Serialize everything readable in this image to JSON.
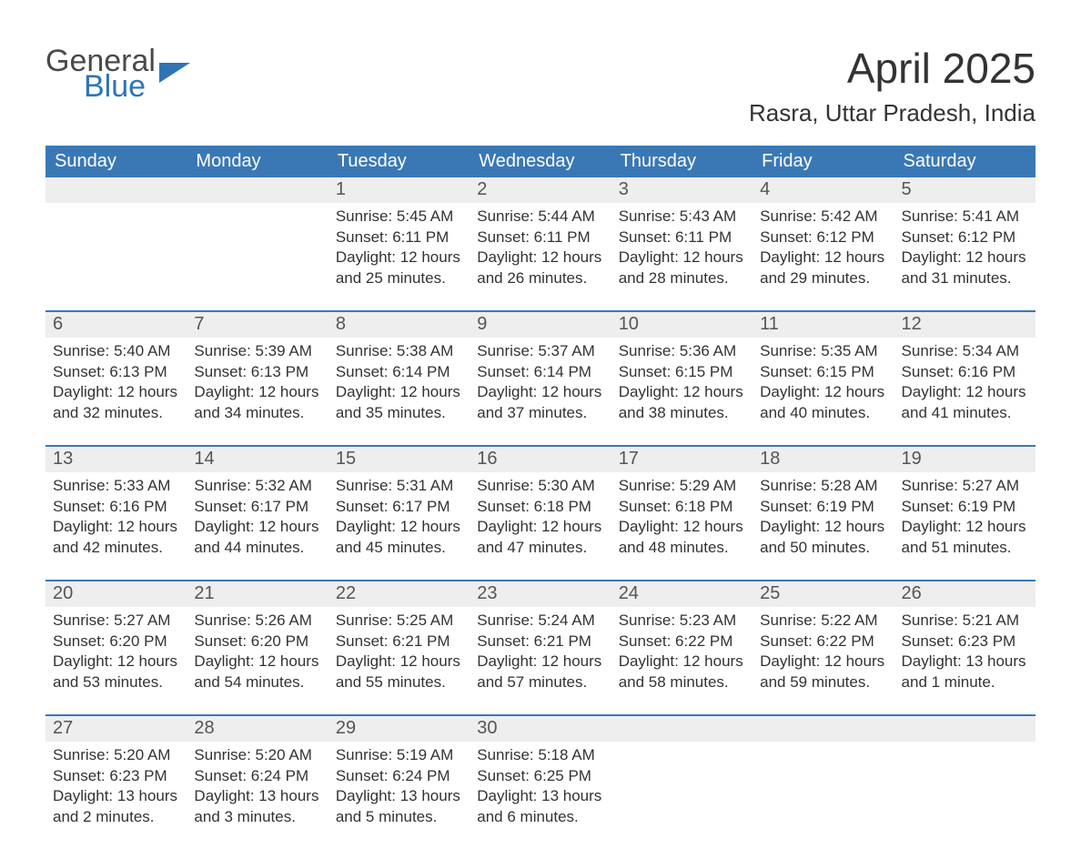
{
  "logo": {
    "text1": "General",
    "text2": "Blue"
  },
  "title": "April 2025",
  "subtitle": "Rasra, Uttar Pradesh, India",
  "colors": {
    "header_bg": "#3a78b5",
    "header_text": "#ffffff",
    "daynum_bg": "#eeeeee",
    "row_divider": "#3a78b5",
    "body_text": "#333333",
    "logo_gray": "#4a4a4a",
    "logo_blue": "#2f74b5",
    "page_bg": "#ffffff"
  },
  "weekdays": [
    "Sunday",
    "Monday",
    "Tuesday",
    "Wednesday",
    "Thursday",
    "Friday",
    "Saturday"
  ],
  "weeks": [
    [
      null,
      null,
      {
        "n": "1",
        "sunrise": "5:45 AM",
        "sunset": "6:11 PM",
        "daylight": "12 hours and 25 minutes."
      },
      {
        "n": "2",
        "sunrise": "5:44 AM",
        "sunset": "6:11 PM",
        "daylight": "12 hours and 26 minutes."
      },
      {
        "n": "3",
        "sunrise": "5:43 AM",
        "sunset": "6:11 PM",
        "daylight": "12 hours and 28 minutes."
      },
      {
        "n": "4",
        "sunrise": "5:42 AM",
        "sunset": "6:12 PM",
        "daylight": "12 hours and 29 minutes."
      },
      {
        "n": "5",
        "sunrise": "5:41 AM",
        "sunset": "6:12 PM",
        "daylight": "12 hours and 31 minutes."
      }
    ],
    [
      {
        "n": "6",
        "sunrise": "5:40 AM",
        "sunset": "6:13 PM",
        "daylight": "12 hours and 32 minutes."
      },
      {
        "n": "7",
        "sunrise": "5:39 AM",
        "sunset": "6:13 PM",
        "daylight": "12 hours and 34 minutes."
      },
      {
        "n": "8",
        "sunrise": "5:38 AM",
        "sunset": "6:14 PM",
        "daylight": "12 hours and 35 minutes."
      },
      {
        "n": "9",
        "sunrise": "5:37 AM",
        "sunset": "6:14 PM",
        "daylight": "12 hours and 37 minutes."
      },
      {
        "n": "10",
        "sunrise": "5:36 AM",
        "sunset": "6:15 PM",
        "daylight": "12 hours and 38 minutes."
      },
      {
        "n": "11",
        "sunrise": "5:35 AM",
        "sunset": "6:15 PM",
        "daylight": "12 hours and 40 minutes."
      },
      {
        "n": "12",
        "sunrise": "5:34 AM",
        "sunset": "6:16 PM",
        "daylight": "12 hours and 41 minutes."
      }
    ],
    [
      {
        "n": "13",
        "sunrise": "5:33 AM",
        "sunset": "6:16 PM",
        "daylight": "12 hours and 42 minutes."
      },
      {
        "n": "14",
        "sunrise": "5:32 AM",
        "sunset": "6:17 PM",
        "daylight": "12 hours and 44 minutes."
      },
      {
        "n": "15",
        "sunrise": "5:31 AM",
        "sunset": "6:17 PM",
        "daylight": "12 hours and 45 minutes."
      },
      {
        "n": "16",
        "sunrise": "5:30 AM",
        "sunset": "6:18 PM",
        "daylight": "12 hours and 47 minutes."
      },
      {
        "n": "17",
        "sunrise": "5:29 AM",
        "sunset": "6:18 PM",
        "daylight": "12 hours and 48 minutes."
      },
      {
        "n": "18",
        "sunrise": "5:28 AM",
        "sunset": "6:19 PM",
        "daylight": "12 hours and 50 minutes."
      },
      {
        "n": "19",
        "sunrise": "5:27 AM",
        "sunset": "6:19 PM",
        "daylight": "12 hours and 51 minutes."
      }
    ],
    [
      {
        "n": "20",
        "sunrise": "5:27 AM",
        "sunset": "6:20 PM",
        "daylight": "12 hours and 53 minutes."
      },
      {
        "n": "21",
        "sunrise": "5:26 AM",
        "sunset": "6:20 PM",
        "daylight": "12 hours and 54 minutes."
      },
      {
        "n": "22",
        "sunrise": "5:25 AM",
        "sunset": "6:21 PM",
        "daylight": "12 hours and 55 minutes."
      },
      {
        "n": "23",
        "sunrise": "5:24 AM",
        "sunset": "6:21 PM",
        "daylight": "12 hours and 57 minutes."
      },
      {
        "n": "24",
        "sunrise": "5:23 AM",
        "sunset": "6:22 PM",
        "daylight": "12 hours and 58 minutes."
      },
      {
        "n": "25",
        "sunrise": "5:22 AM",
        "sunset": "6:22 PM",
        "daylight": "12 hours and 59 minutes."
      },
      {
        "n": "26",
        "sunrise": "5:21 AM",
        "sunset": "6:23 PM",
        "daylight": "13 hours and 1 minute."
      }
    ],
    [
      {
        "n": "27",
        "sunrise": "5:20 AM",
        "sunset": "6:23 PM",
        "daylight": "13 hours and 2 minutes."
      },
      {
        "n": "28",
        "sunrise": "5:20 AM",
        "sunset": "6:24 PM",
        "daylight": "13 hours and 3 minutes."
      },
      {
        "n": "29",
        "sunrise": "5:19 AM",
        "sunset": "6:24 PM",
        "daylight": "13 hours and 5 minutes."
      },
      {
        "n": "30",
        "sunrise": "5:18 AM",
        "sunset": "6:25 PM",
        "daylight": "13 hours and 6 minutes."
      },
      null,
      null,
      null
    ]
  ],
  "labels": {
    "sunrise": "Sunrise: ",
    "sunset": "Sunset: ",
    "daylight": "Daylight: "
  }
}
